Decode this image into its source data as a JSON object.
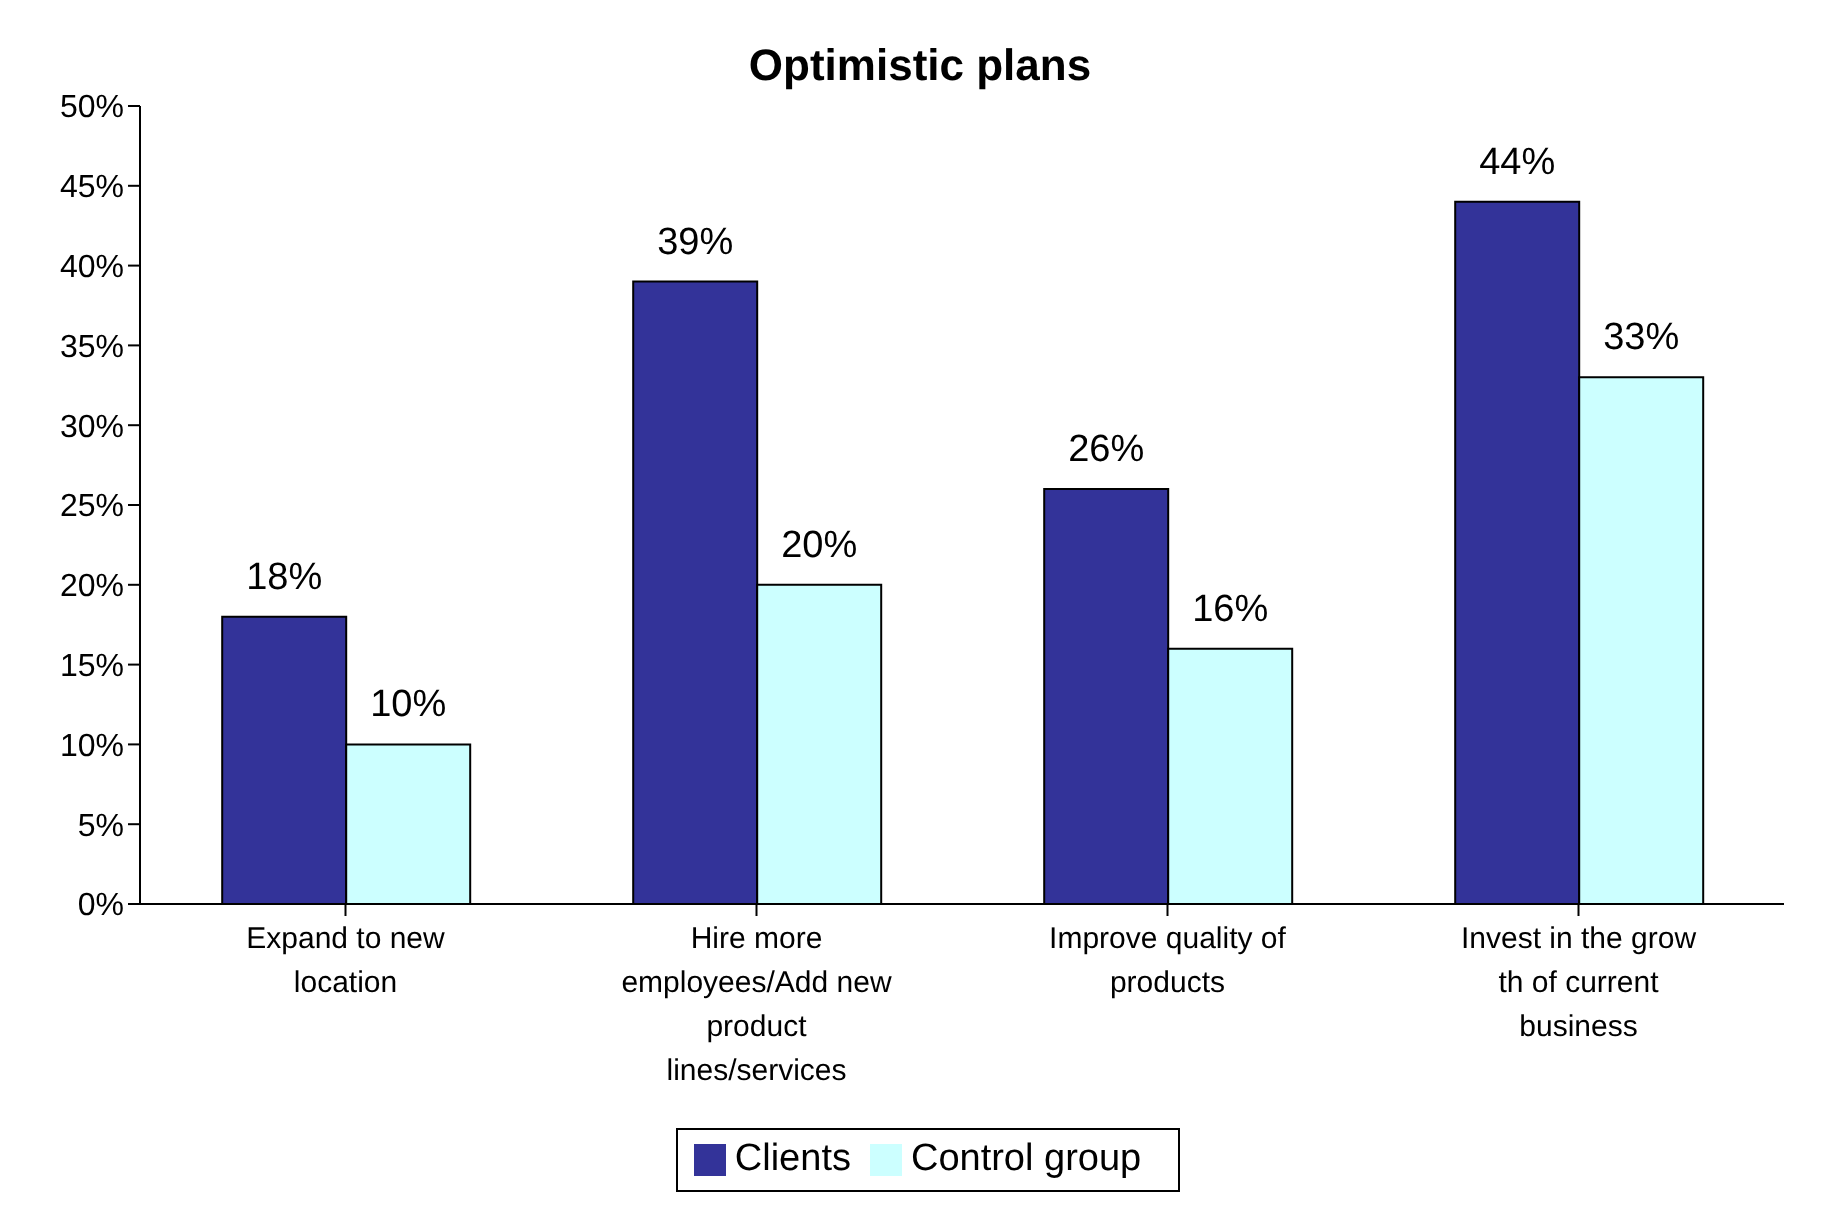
{
  "chart_data": {
    "type": "bar",
    "title": "Optimistic plans",
    "categories": [
      "Expand to new location",
      "Hire more employees/Add new product lines/services",
      "Improve quality of products",
      "Invest in the grow th of current business"
    ],
    "series": [
      {
        "name": "Clients",
        "color": "#333399",
        "values": [
          18,
          39,
          26,
          44
        ],
        "value_labels": [
          "18%",
          "39%",
          "26%",
          "44%"
        ]
      },
      {
        "name": "Control group",
        "color": "#ccffff",
        "values": [
          10,
          20,
          16,
          33
        ],
        "value_labels": [
          "10%",
          "20%",
          "16%",
          "33%"
        ]
      }
    ],
    "ylim": [
      0,
      50
    ],
    "yticks": [
      {
        "value": 0,
        "label": "0%"
      },
      {
        "value": 5,
        "label": "5%"
      },
      {
        "value": 10,
        "label": "10%"
      },
      {
        "value": 15,
        "label": "15%"
      },
      {
        "value": 20,
        "label": "20%"
      },
      {
        "value": 25,
        "label": "25%"
      },
      {
        "value": 30,
        "label": "30%"
      },
      {
        "value": 35,
        "label": "35%"
      },
      {
        "value": 40,
        "label": "40%"
      },
      {
        "value": 45,
        "label": "45%"
      },
      {
        "value": 50,
        "label": "50%"
      }
    ],
    "grid": false,
    "legend": "bottom"
  }
}
